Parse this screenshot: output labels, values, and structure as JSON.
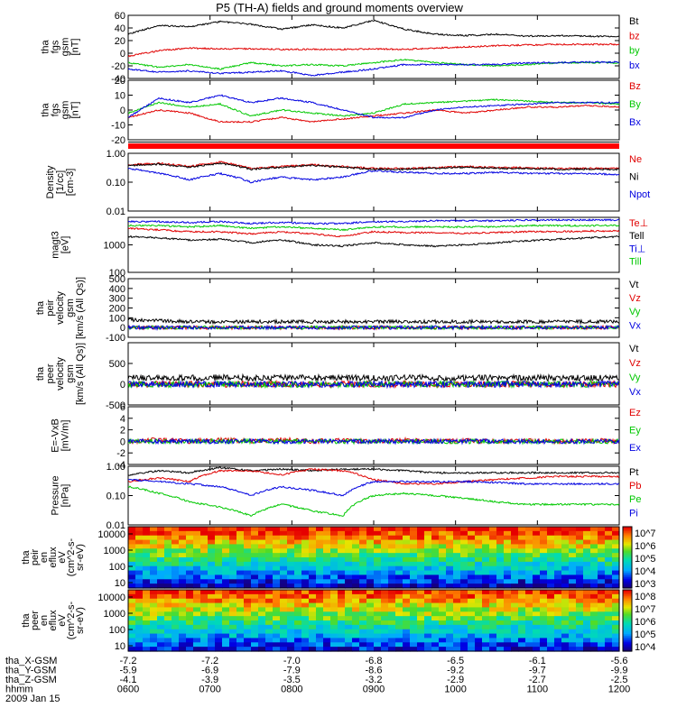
{
  "title": "P5 (TH-A) fields and ground moments overview",
  "colors": {
    "black": "#000000",
    "red": "#e00000",
    "green": "#00c800",
    "blue": "#0000e0",
    "white": "#ffffff"
  },
  "chart_data": {
    "type": "line",
    "x_ticks": [
      "0600",
      "0700",
      "0800",
      "0900",
      "1000",
      "1100",
      "1200"
    ],
    "date_label": "2009 Jan 15",
    "panels": [
      {
        "ylabel": [
          "tha",
          "fgs",
          "gsm",
          "[nT]"
        ],
        "ylim": [
          -40,
          60
        ],
        "yticks": [
          -40,
          -20,
          0,
          20,
          40,
          60
        ],
        "log": false,
        "series": [
          {
            "name": "Bt",
            "color": "#000000",
            "values": [
              30,
              44,
              42,
              50,
              46,
              38,
              45,
              40,
              52,
              38,
              30,
              28,
              30,
              27,
              28,
              27,
              26
            ]
          },
          {
            "name": "bz",
            "color": "#e00000",
            "values": [
              -5,
              4,
              8,
              7,
              7,
              6,
              6,
              6,
              7,
              6,
              8,
              10,
              12,
              13,
              14,
              14,
              14
            ]
          },
          {
            "name": "by",
            "color": "#00c800",
            "values": [
              -15,
              -22,
              -18,
              -25,
              -15,
              -20,
              -18,
              -20,
              -15,
              -10,
              -15,
              -18,
              -20,
              -18,
              -15,
              -15,
              -15
            ]
          },
          {
            "name": "bx",
            "color": "#0000e0",
            "values": [
              -25,
              -30,
              -28,
              -32,
              -30,
              -28,
              -35,
              -30,
              -25,
              -18,
              -18,
              -18,
              -18,
              -15,
              -15,
              -14,
              -14
            ]
          }
        ]
      },
      {
        "ylabel": [
          "tha",
          "fgs",
          "gsm",
          "[nT]"
        ],
        "ylim": [
          -20,
          20
        ],
        "yticks": [
          -20,
          -10,
          0,
          10,
          20
        ],
        "log": false,
        "series": [
          {
            "name": "Bz",
            "color": "#e00000",
            "values": [
              -5,
              0,
              -2,
              -8,
              -8,
              -5,
              -8,
              -6,
              -4,
              -2,
              0,
              -2,
              0,
              2,
              2,
              3,
              2
            ]
          },
          {
            "name": "By",
            "color": "#00c800",
            "values": [
              -2,
              5,
              2,
              4,
              -4,
              0,
              -2,
              -4,
              -2,
              4,
              5,
              6,
              7,
              6,
              5,
              5,
              4
            ]
          },
          {
            "name": "Bx",
            "color": "#0000e0",
            "values": [
              -5,
              8,
              5,
              10,
              5,
              8,
              5,
              0,
              -5,
              -5,
              0,
              2,
              3,
              4,
              5,
              5,
              5
            ]
          }
        ]
      },
      {
        "ylabel": [
          "Density",
          "[1/cc]",
          "[cm-3]"
        ],
        "ylim": [
          0.01,
          1.0
        ],
        "yticks": [
          0.01,
          0.1,
          1.0
        ],
        "ytick_labels": [
          "0.01",
          "0.10",
          "1.00"
        ],
        "log": true,
        "series": [
          {
            "name": "Ne",
            "color": "#e00000",
            "values": [
              0.4,
              0.45,
              0.35,
              0.5,
              0.3,
              0.35,
              0.4,
              0.35,
              0.3,
              0.3,
              0.32,
              0.35,
              0.32,
              0.32,
              0.3,
              0.3,
              0.3
            ]
          },
          {
            "name": "Ni",
            "color": "#000000",
            "values": [
              0.38,
              0.42,
              0.33,
              0.45,
              0.28,
              0.33,
              0.38,
              0.33,
              0.28,
              0.28,
              0.3,
              0.33,
              0.3,
              0.3,
              0.28,
              0.28,
              0.28
            ]
          },
          {
            "name": "Npot",
            "color": "#0000e0",
            "values": [
              0.3,
              0.2,
              0.12,
              0.2,
              0.1,
              0.15,
              0.12,
              0.15,
              0.25,
              0.22,
              0.2,
              0.2,
              0.22,
              0.2,
              0.2,
              0.2,
              0.18
            ]
          }
        ]
      },
      {
        "ylabel": [
          "magt3",
          "[eV]"
        ],
        "ylim": [
          100,
          10000
        ],
        "yticks": [
          100,
          1000
        ],
        "ytick_labels": [
          "100",
          "1000"
        ],
        "log": true,
        "series": [
          {
            "name": "Te⊥",
            "color": "#e00000",
            "values": [
              4000,
              3500,
              3000,
              3000,
              2500,
              3000,
              2500,
              2000,
              3000,
              2800,
              2800,
              2600,
              2800,
              3000,
              3000,
              3200,
              3200
            ]
          },
          {
            "name": "Tell",
            "color": "#000000",
            "values": [
              2000,
              1800,
              1500,
              1600,
              1200,
              1500,
              1000,
              900,
              1200,
              1000,
              900,
              1000,
              1200,
              1400,
              1600,
              1800,
              2000
            ]
          },
          {
            "name": "Ti⊥",
            "color": "#0000e0",
            "values": [
              7000,
              7000,
              6500,
              7000,
              6000,
              6500,
              6000,
              6000,
              7000,
              7000,
              7500,
              7500,
              7500,
              8000,
              8000,
              8000,
              8000
            ]
          },
          {
            "name": "Till",
            "color": "#00c800",
            "values": [
              5000,
              5000,
              4500,
              5000,
              4000,
              4500,
              4000,
              3500,
              4500,
              4500,
              4500,
              4500,
              4500,
              5000,
              5000,
              5000,
              5000
            ]
          }
        ]
      },
      {
        "ylabel": [
          "tha",
          "peir",
          "velocity",
          "gsm",
          "[km/s (All Qs)]"
        ],
        "ylim": [
          -100,
          500
        ],
        "yticks": [
          -100,
          0,
          100,
          200,
          300,
          400,
          500
        ],
        "log": false,
        "series": [
          {
            "name": "Vt",
            "color": "#000000",
            "values": [
              80,
              70,
              60,
              60,
              60,
              60,
              60,
              60,
              60,
              60,
              60,
              60,
              60,
              60,
              60,
              60,
              60
            ]
          },
          {
            "name": "Vz",
            "color": "#e00000",
            "values": [
              0,
              0,
              0,
              0,
              0,
              0,
              0,
              0,
              0,
              0,
              0,
              0,
              0,
              0,
              0,
              0,
              0
            ]
          },
          {
            "name": "Vy",
            "color": "#00c800",
            "values": [
              0,
              0,
              0,
              0,
              0,
              0,
              0,
              0,
              0,
              0,
              0,
              0,
              0,
              0,
              0,
              0,
              0
            ]
          },
          {
            "name": "Vx",
            "color": "#0000e0",
            "values": [
              0,
              0,
              0,
              0,
              0,
              0,
              0,
              0,
              0,
              0,
              0,
              0,
              0,
              0,
              0,
              0,
              0
            ]
          }
        ]
      },
      {
        "ylabel": [
          "tha",
          "peer",
          "velocity",
          "gsm",
          "[km/s (All Qs)]"
        ],
        "ylim": [
          -500,
          1000
        ],
        "yticks": [
          -500,
          0,
          500
        ],
        "log": false,
        "series": [
          {
            "name": "Vt",
            "color": "#000000",
            "values": [
              150,
              160,
              150,
              160,
              150,
              150,
              160,
              150,
              150,
              150,
              150,
              150,
              150,
              150,
              150,
              150,
              150
            ]
          },
          {
            "name": "Vz",
            "color": "#e00000",
            "values": [
              0,
              0,
              0,
              0,
              0,
              0,
              0,
              0,
              0,
              0,
              0,
              0,
              0,
              0,
              0,
              0,
              0
            ]
          },
          {
            "name": "Vy",
            "color": "#00c800",
            "values": [
              0,
              0,
              0,
              0,
              0,
              0,
              0,
              0,
              0,
              0,
              0,
              0,
              0,
              0,
              0,
              0,
              0
            ]
          },
          {
            "name": "Vx",
            "color": "#0000e0",
            "values": [
              0,
              0,
              0,
              0,
              0,
              0,
              0,
              0,
              0,
              0,
              0,
              0,
              0,
              0,
              0,
              0,
              0
            ]
          }
        ]
      },
      {
        "ylabel": [
          "E=-VxB",
          "[mV/m]"
        ],
        "ylim": [
          -4,
          6
        ],
        "yticks": [
          -4,
          -2,
          0,
          2,
          4,
          6
        ],
        "log": false,
        "series": [
          {
            "name": "Ez",
            "color": "#e00000",
            "values": [
              0,
              0.3,
              0,
              0.3,
              0,
              0.3,
              0,
              0.2,
              0,
              0.2,
              0,
              0.2,
              0,
              0.2,
              0,
              0.2,
              0
            ]
          },
          {
            "name": "Ey",
            "color": "#00c800",
            "values": [
              0,
              0,
              0,
              0,
              0,
              0,
              0,
              0,
              0,
              0,
              0,
              0,
              0,
              0,
              0,
              0,
              0
            ]
          },
          {
            "name": "Ex",
            "color": "#0000e0",
            "values": [
              0,
              0,
              0,
              0,
              0,
              0,
              0,
              0,
              0,
              0,
              0,
              0,
              0,
              0,
              0,
              0,
              0
            ]
          }
        ]
      },
      {
        "ylabel": [
          "Pressure",
          "[nPa]"
        ],
        "ylim": [
          0.01,
          1.0
        ],
        "yticks": [
          0.01,
          0.1,
          1.0
        ],
        "ytick_labels": [
          "0.01",
          "0.10",
          "1.00"
        ],
        "log": true,
        "series": [
          {
            "name": "Pt",
            "color": "#000000",
            "values": [
              0.5,
              0.7,
              0.6,
              0.9,
              0.7,
              0.8,
              0.7,
              0.8,
              0.8,
              0.7,
              0.6,
              0.6,
              0.6,
              0.6,
              0.6,
              0.6,
              0.6
            ]
          },
          {
            "name": "Pb",
            "color": "#e00000",
            "values": [
              0.3,
              0.4,
              0.3,
              0.7,
              0.7,
              0.5,
              0.8,
              0.7,
              0.35,
              0.25,
              0.25,
              0.3,
              0.35,
              0.4,
              0.45,
              0.45,
              0.45
            ]
          },
          {
            "name": "Pe",
            "color": "#00c800",
            "values": [
              0.2,
              0.12,
              0.06,
              0.04,
              0.02,
              0.05,
              0.03,
              0.02,
              0.1,
              0.12,
              0.1,
              0.08,
              0.06,
              0.05,
              0.05,
              0.05,
              0.05
            ]
          },
          {
            "name": "Pi",
            "color": "#0000e0",
            "values": [
              0.35,
              0.3,
              0.25,
              0.2,
              0.1,
              0.2,
              0.15,
              0.1,
              0.3,
              0.3,
              0.3,
              0.3,
              0.28,
              0.25,
              0.25,
              0.25,
              0.25
            ]
          }
        ]
      }
    ],
    "spectrograms": [
      {
        "ylabel": [
          "tha",
          "peir",
          "en",
          "eflux",
          "eV",
          "(cm^2-s-",
          "sr-eV)"
        ],
        "yticks": [
          "10000",
          "1000",
          "100",
          "10"
        ],
        "colorbar_ticks": [
          "10^7",
          "10^6",
          "10^5",
          "10^4",
          "10^3"
        ]
      },
      {
        "ylabel": [
          "tha",
          "peer",
          "en",
          "eflux",
          "eV",
          "(cm^2-s-",
          "sr-eV)"
        ],
        "yticks": [
          "10000",
          "1000",
          "100",
          "10"
        ],
        "colorbar_ticks": [
          "10^8",
          "10^7",
          "10^6",
          "10^5",
          "10^4"
        ]
      }
    ],
    "ephemeris": [
      {
        "label": "tha_X-GSM",
        "values": [
          "-7.2",
          "-7.2",
          "-7.0",
          "-6.8",
          "-6.5",
          "-6.1",
          "-5.6"
        ]
      },
      {
        "label": "tha_Y-GSM",
        "values": [
          "-5.9",
          "-6.9",
          "-7.9",
          "-8.6",
          "-9.2",
          "-9.7",
          "-9.9"
        ]
      },
      {
        "label": "tha_Z-GSM",
        "values": [
          "-4.1",
          "-3.9",
          "-3.5",
          "-3.2",
          "-2.9",
          "-2.7",
          "-2.5"
        ]
      },
      {
        "label": "hhmm",
        "values": [
          "0600",
          "0700",
          "0800",
          "0900",
          "1000",
          "1100",
          "1200"
        ]
      }
    ]
  }
}
